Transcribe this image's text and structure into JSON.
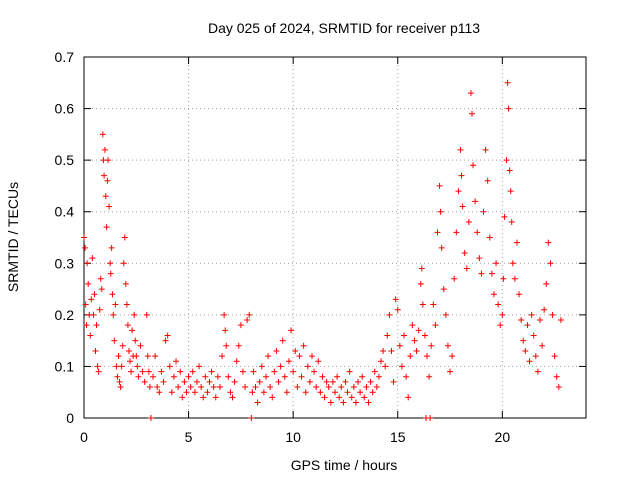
{
  "chart_data": {
    "type": "scatter",
    "title": "Day 025 of 2024, SRMTID for receiver p113",
    "xlabel": "GPS time / hours",
    "ylabel": "SRMTID / TECUs",
    "xlim": [
      0,
      24
    ],
    "ylim": [
      0,
      0.7
    ],
    "xticks": [
      0,
      5,
      10,
      15,
      20
    ],
    "xtick_labels": [
      "0",
      "5",
      "10",
      "15",
      "20"
    ],
    "yticks": [
      0,
      0.1,
      0.2,
      0.3,
      0.4,
      0.5,
      0.6,
      0.7
    ],
    "ytick_labels": [
      "0",
      "0.1",
      "0.2",
      "0.3",
      "0.4",
      "0.5",
      "0.6",
      "0.7"
    ],
    "grid": true,
    "marker": "+",
    "color": "#ff0000",
    "series": [
      {
        "name": "SRMTID",
        "points": [
          [
            0.0,
            0.35
          ],
          [
            0.05,
            0.33
          ],
          [
            0.08,
            0.22
          ],
          [
            0.12,
            0.18
          ],
          [
            0.15,
            0.3
          ],
          [
            0.2,
            0.26
          ],
          [
            0.25,
            0.2
          ],
          [
            0.3,
            0.16
          ],
          [
            0.35,
            0.23
          ],
          [
            0.4,
            0.31
          ],
          [
            0.45,
            0.2
          ],
          [
            0.5,
            0.24
          ],
          [
            0.55,
            0.13
          ],
          [
            0.6,
            0.18
          ],
          [
            0.65,
            0.1
          ],
          [
            0.7,
            0.09
          ],
          [
            0.75,
            0.21
          ],
          [
            0.8,
            0.27
          ],
          [
            0.85,
            0.25
          ],
          [
            0.9,
            0.55
          ],
          [
            0.93,
            0.5
          ],
          [
            0.96,
            0.47
          ],
          [
            1.0,
            0.52
          ],
          [
            1.04,
            0.43
          ],
          [
            1.08,
            0.37
          ],
          [
            1.12,
            0.46
          ],
          [
            1.15,
            0.5
          ],
          [
            1.2,
            0.41
          ],
          [
            1.25,
            0.3
          ],
          [
            1.28,
            0.28
          ],
          [
            1.32,
            0.33
          ],
          [
            1.36,
            0.24
          ],
          [
            1.4,
            0.2
          ],
          [
            1.45,
            0.15
          ],
          [
            1.5,
            0.22
          ],
          [
            1.55,
            0.1
          ],
          [
            1.6,
            0.08
          ],
          [
            1.65,
            0.12
          ],
          [
            1.7,
            0.07
          ],
          [
            1.75,
            0.06
          ],
          [
            1.8,
            0.1
          ],
          [
            1.85,
            0.14
          ],
          [
            1.9,
            0.3
          ],
          [
            1.95,
            0.35
          ],
          [
            2.0,
            0.26
          ],
          [
            2.05,
            0.22
          ],
          [
            2.1,
            0.18
          ],
          [
            2.15,
            0.13
          ],
          [
            2.2,
            0.11
          ],
          [
            2.25,
            0.09
          ],
          [
            2.3,
            0.17
          ],
          [
            2.35,
            0.12
          ],
          [
            2.4,
            0.2
          ],
          [
            2.45,
            0.15
          ],
          [
            2.5,
            0.12
          ],
          [
            2.55,
            0.1
          ],
          [
            2.6,
            0.08
          ],
          [
            2.7,
            0.14
          ],
          [
            2.8,
            0.09
          ],
          [
            2.9,
            0.07
          ],
          [
            3.0,
            0.2
          ],
          [
            3.05,
            0.12
          ],
          [
            3.1,
            0.09
          ],
          [
            3.15,
            0.06
          ],
          [
            3.2,
            0.0
          ],
          [
            3.3,
            0.08
          ],
          [
            3.4,
            0.12
          ],
          [
            3.5,
            0.06
          ],
          [
            3.6,
            0.05
          ],
          [
            3.7,
            0.09
          ],
          [
            3.8,
            0.07
          ],
          [
            3.9,
            0.15
          ],
          [
            4.0,
            0.16
          ],
          [
            4.1,
            0.1
          ],
          [
            4.2,
            0.05
          ],
          [
            4.3,
            0.08
          ],
          [
            4.4,
            0.11
          ],
          [
            4.5,
            0.06
          ],
          [
            4.6,
            0.09
          ],
          [
            4.7,
            0.04
          ],
          [
            4.8,
            0.07
          ],
          [
            4.9,
            0.05
          ],
          [
            5.0,
            0.08
          ],
          [
            5.1,
            0.06
          ],
          [
            5.2,
            0.09
          ],
          [
            5.3,
            0.05
          ],
          [
            5.4,
            0.07
          ],
          [
            5.5,
            0.1
          ],
          [
            5.6,
            0.06
          ],
          [
            5.7,
            0.04
          ],
          [
            5.8,
            0.08
          ],
          [
            5.9,
            0.05
          ],
          [
            6.0,
            0.07
          ],
          [
            6.1,
            0.09
          ],
          [
            6.2,
            0.06
          ],
          [
            6.3,
            0.04
          ],
          [
            6.4,
            0.08
          ],
          [
            6.5,
            0.06
          ],
          [
            6.6,
            0.12
          ],
          [
            6.7,
            0.2
          ],
          [
            6.75,
            0.17
          ],
          [
            6.8,
            0.14
          ],
          [
            6.9,
            0.08
          ],
          [
            7.0,
            0.05
          ],
          [
            7.1,
            0.04
          ],
          [
            7.2,
            0.07
          ],
          [
            7.3,
            0.11
          ],
          [
            7.4,
            0.14
          ],
          [
            7.5,
            0.18
          ],
          [
            7.6,
            0.09
          ],
          [
            7.7,
            0.06
          ],
          [
            7.8,
            0.19
          ],
          [
            7.9,
            0.2
          ],
          [
            8.0,
            0.0
          ],
          [
            8.05,
            0.05
          ],
          [
            8.1,
            0.09
          ],
          [
            8.2,
            0.06
          ],
          [
            8.3,
            0.03
          ],
          [
            8.4,
            0.07
          ],
          [
            8.5,
            0.1
          ],
          [
            8.6,
            0.05
          ],
          [
            8.7,
            0.08
          ],
          [
            8.8,
            0.12
          ],
          [
            8.9,
            0.06
          ],
          [
            9.0,
            0.04
          ],
          [
            9.1,
            0.09
          ],
          [
            9.2,
            0.13
          ],
          [
            9.3,
            0.07
          ],
          [
            9.4,
            0.1
          ],
          [
            9.5,
            0.15
          ],
          [
            9.6,
            0.08
          ],
          [
            9.7,
            0.05
          ],
          [
            9.8,
            0.11
          ],
          [
            9.9,
            0.17
          ],
          [
            10.0,
            0.09
          ],
          [
            10.1,
            0.13
          ],
          [
            10.2,
            0.06
          ],
          [
            10.3,
            0.12
          ],
          [
            10.4,
            0.08
          ],
          [
            10.5,
            0.14
          ],
          [
            10.6,
            0.05
          ],
          [
            10.7,
            0.1
          ],
          [
            10.8,
            0.07
          ],
          [
            10.9,
            0.12
          ],
          [
            11.0,
            0.09
          ],
          [
            11.1,
            0.06
          ],
          [
            11.2,
            0.11
          ],
          [
            11.3,
            0.05
          ],
          [
            11.4,
            0.08
          ],
          [
            11.5,
            0.04
          ],
          [
            11.6,
            0.07
          ],
          [
            11.7,
            0.06
          ],
          [
            11.8,
            0.03
          ],
          [
            11.9,
            0.07
          ],
          [
            12.0,
            0.05
          ],
          [
            12.1,
            0.08
          ],
          [
            12.2,
            0.04
          ],
          [
            12.3,
            0.06
          ],
          [
            12.4,
            0.03
          ],
          [
            12.5,
            0.07
          ],
          [
            12.6,
            0.05
          ],
          [
            12.7,
            0.09
          ],
          [
            12.8,
            0.04
          ],
          [
            12.9,
            0.06
          ],
          [
            13.0,
            0.03
          ],
          [
            13.1,
            0.07
          ],
          [
            13.2,
            0.05
          ],
          [
            13.3,
            0.08
          ],
          [
            13.4,
            0.04
          ],
          [
            13.5,
            0.06
          ],
          [
            13.6,
            0.03
          ],
          [
            13.7,
            0.07
          ],
          [
            13.8,
            0.05
          ],
          [
            13.9,
            0.09
          ],
          [
            14.0,
            0.06
          ],
          [
            14.1,
            0.08
          ],
          [
            14.2,
            0.11
          ],
          [
            14.3,
            0.13
          ],
          [
            14.4,
            0.1
          ],
          [
            14.5,
            0.16
          ],
          [
            14.6,
            0.2
          ],
          [
            14.7,
            0.13
          ],
          [
            14.8,
            0.07
          ],
          [
            14.9,
            0.23
          ],
          [
            15.0,
            0.21
          ],
          [
            15.1,
            0.14
          ],
          [
            15.2,
            0.1
          ],
          [
            15.3,
            0.16
          ],
          [
            15.4,
            0.08
          ],
          [
            15.5,
            0.04
          ],
          [
            15.6,
            0.12
          ],
          [
            15.7,
            0.18
          ],
          [
            15.8,
            0.15
          ],
          [
            15.9,
            0.13
          ],
          [
            16.0,
            0.17
          ],
          [
            16.1,
            0.26
          ],
          [
            16.15,
            0.29
          ],
          [
            16.2,
            0.22
          ],
          [
            16.3,
            0.16
          ],
          [
            16.35,
            0.0
          ],
          [
            16.4,
            0.12
          ],
          [
            16.5,
            0.08
          ],
          [
            16.55,
            0.0
          ],
          [
            16.6,
            0.14
          ],
          [
            16.7,
            0.22
          ],
          [
            16.8,
            0.18
          ],
          [
            16.9,
            0.36
          ],
          [
            17.0,
            0.45
          ],
          [
            17.05,
            0.4
          ],
          [
            17.1,
            0.33
          ],
          [
            17.2,
            0.25
          ],
          [
            17.3,
            0.2
          ],
          [
            17.4,
            0.14
          ],
          [
            17.5,
            0.09
          ],
          [
            17.6,
            0.12
          ],
          [
            17.7,
            0.27
          ],
          [
            17.8,
            0.36
          ],
          [
            17.9,
            0.44
          ],
          [
            18.0,
            0.52
          ],
          [
            18.05,
            0.47
          ],
          [
            18.1,
            0.41
          ],
          [
            18.2,
            0.32
          ],
          [
            18.3,
            0.29
          ],
          [
            18.4,
            0.38
          ],
          [
            18.5,
            0.63
          ],
          [
            18.55,
            0.59
          ],
          [
            18.6,
            0.49
          ],
          [
            18.7,
            0.42
          ],
          [
            18.8,
            0.36
          ],
          [
            18.9,
            0.31
          ],
          [
            19.0,
            0.28
          ],
          [
            19.1,
            0.4
          ],
          [
            19.2,
            0.52
          ],
          [
            19.3,
            0.46
          ],
          [
            19.4,
            0.35
          ],
          [
            19.5,
            0.28
          ],
          [
            19.6,
            0.24
          ],
          [
            19.7,
            0.3
          ],
          [
            19.8,
            0.22
          ],
          [
            19.9,
            0.18
          ],
          [
            20.0,
            0.2
          ],
          [
            20.05,
            0.27
          ],
          [
            20.1,
            0.39
          ],
          [
            20.2,
            0.5
          ],
          [
            20.25,
            0.65
          ],
          [
            20.3,
            0.6
          ],
          [
            20.35,
            0.48
          ],
          [
            20.4,
            0.44
          ],
          [
            20.45,
            0.38
          ],
          [
            20.5,
            0.3
          ],
          [
            20.6,
            0.27
          ],
          [
            20.7,
            0.34
          ],
          [
            20.8,
            0.24
          ],
          [
            20.9,
            0.19
          ],
          [
            21.0,
            0.15
          ],
          [
            21.1,
            0.13
          ],
          [
            21.2,
            0.18
          ],
          [
            21.3,
            0.11
          ],
          [
            21.4,
            0.2
          ],
          [
            21.5,
            0.16
          ],
          [
            21.6,
            0.12
          ],
          [
            21.7,
            0.09
          ],
          [
            21.8,
            0.19
          ],
          [
            21.9,
            0.14
          ],
          [
            22.0,
            0.21
          ],
          [
            22.1,
            0.26
          ],
          [
            22.2,
            0.34
          ],
          [
            22.3,
            0.3
          ],
          [
            22.4,
            0.2
          ],
          [
            22.5,
            0.12
          ],
          [
            22.6,
            0.08
          ],
          [
            22.7,
            0.06
          ],
          [
            22.8,
            0.19
          ]
        ]
      }
    ]
  }
}
